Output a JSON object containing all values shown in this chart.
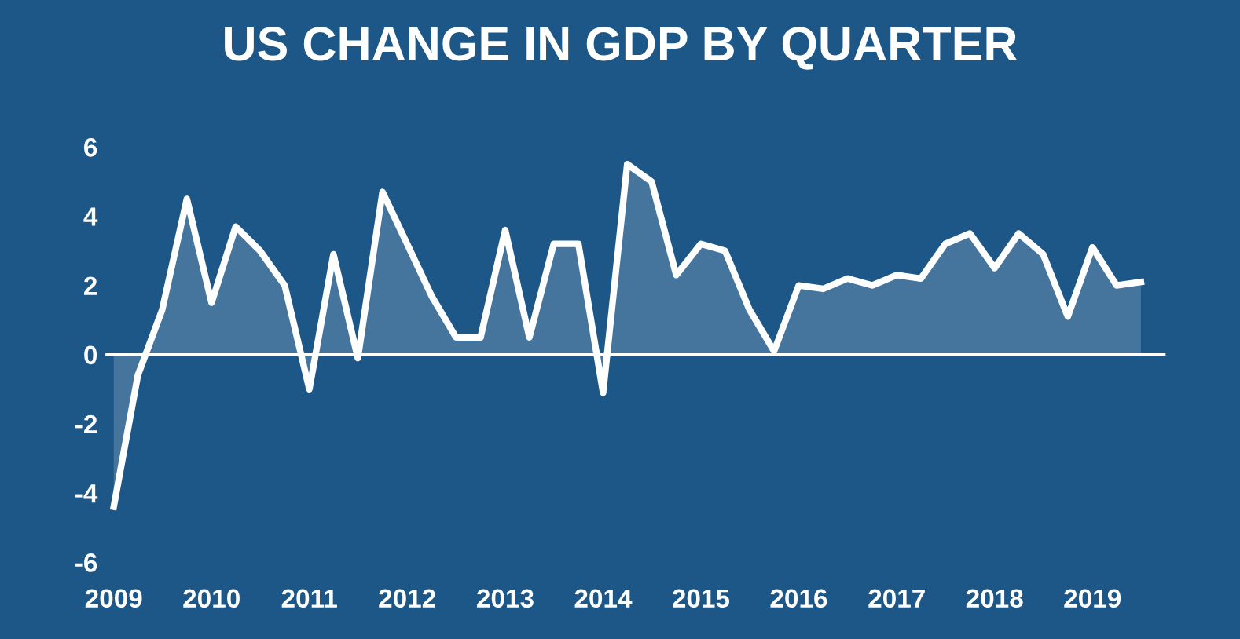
{
  "chart_data": {
    "type": "area",
    "title": "US CHANGE IN GDP BY QUARTER",
    "x": [
      "2009-01",
      "2009-04",
      "2009-07",
      "2009-10",
      "2010-01",
      "2010-04",
      "2010-07",
      "2010-10",
      "2011-01",
      "2011-04",
      "2011-07",
      "2011-10",
      "2012-01",
      "2012-04",
      "2012-07",
      "2012-10",
      "2013-01",
      "2013-04",
      "2013-07",
      "2013-10",
      "2014-01",
      "2014-04",
      "2014-07",
      "2014-10",
      "2015-01",
      "2015-04",
      "2015-07",
      "2015-10",
      "2016-01",
      "2016-04",
      "2016-07",
      "2016-10",
      "2017-01",
      "2017-04",
      "2017-07",
      "2017-10",
      "2018-01",
      "2018-04",
      "2018-07",
      "2018-10",
      "2019-01",
      "2019-04",
      "2019-07"
    ],
    "series": [
      {
        "color": "#ffffff",
        "values": [
          -4.4,
          -0.6,
          1.3,
          4.5,
          1.5,
          3.7,
          3.0,
          2.0,
          -1.0,
          2.9,
          -0.1,
          4.7,
          3.2,
          1.7,
          0.5,
          0.5,
          3.6,
          0.5,
          3.2,
          3.2,
          -1.1,
          5.5,
          5.0,
          2.3,
          3.2,
          3.0,
          1.3,
          0.1,
          2.0,
          1.9,
          2.2,
          2.0,
          2.3,
          2.2,
          3.2,
          3.5,
          2.5,
          3.5,
          2.9,
          1.1,
          3.1,
          2.0,
          2.1
        ]
      }
    ],
    "ylim": [
      -6,
      6
    ],
    "ref_lines": [
      {
        "axis": "y",
        "value": 0,
        "color": "#ffffff"
      }
    ],
    "yticks": [
      -6,
      -4,
      -2,
      0,
      2,
      4,
      6
    ],
    "xticks": [
      {
        "value": "2009-01",
        "label": "2009"
      },
      {
        "value": "2010-01",
        "label": "2010"
      },
      {
        "value": "2011-01",
        "label": "2011"
      },
      {
        "value": "2012-01",
        "label": "2012"
      },
      {
        "value": "2013-01",
        "label": "2013"
      },
      {
        "value": "2014-01",
        "label": "2014"
      },
      {
        "value": "2015-01",
        "label": "2015"
      },
      {
        "value": "2016-01",
        "label": "2016"
      },
      {
        "value": "2017-01",
        "label": "2017"
      },
      {
        "value": "2018-01",
        "label": "2018"
      },
      {
        "value": "2019-01",
        "label": "2019"
      }
    ],
    "xlim": [
      "2008-12",
      "2019-10"
    ],
    "grid": false,
    "legend": false,
    "marker": "none",
    "line_style": "solid"
  }
}
